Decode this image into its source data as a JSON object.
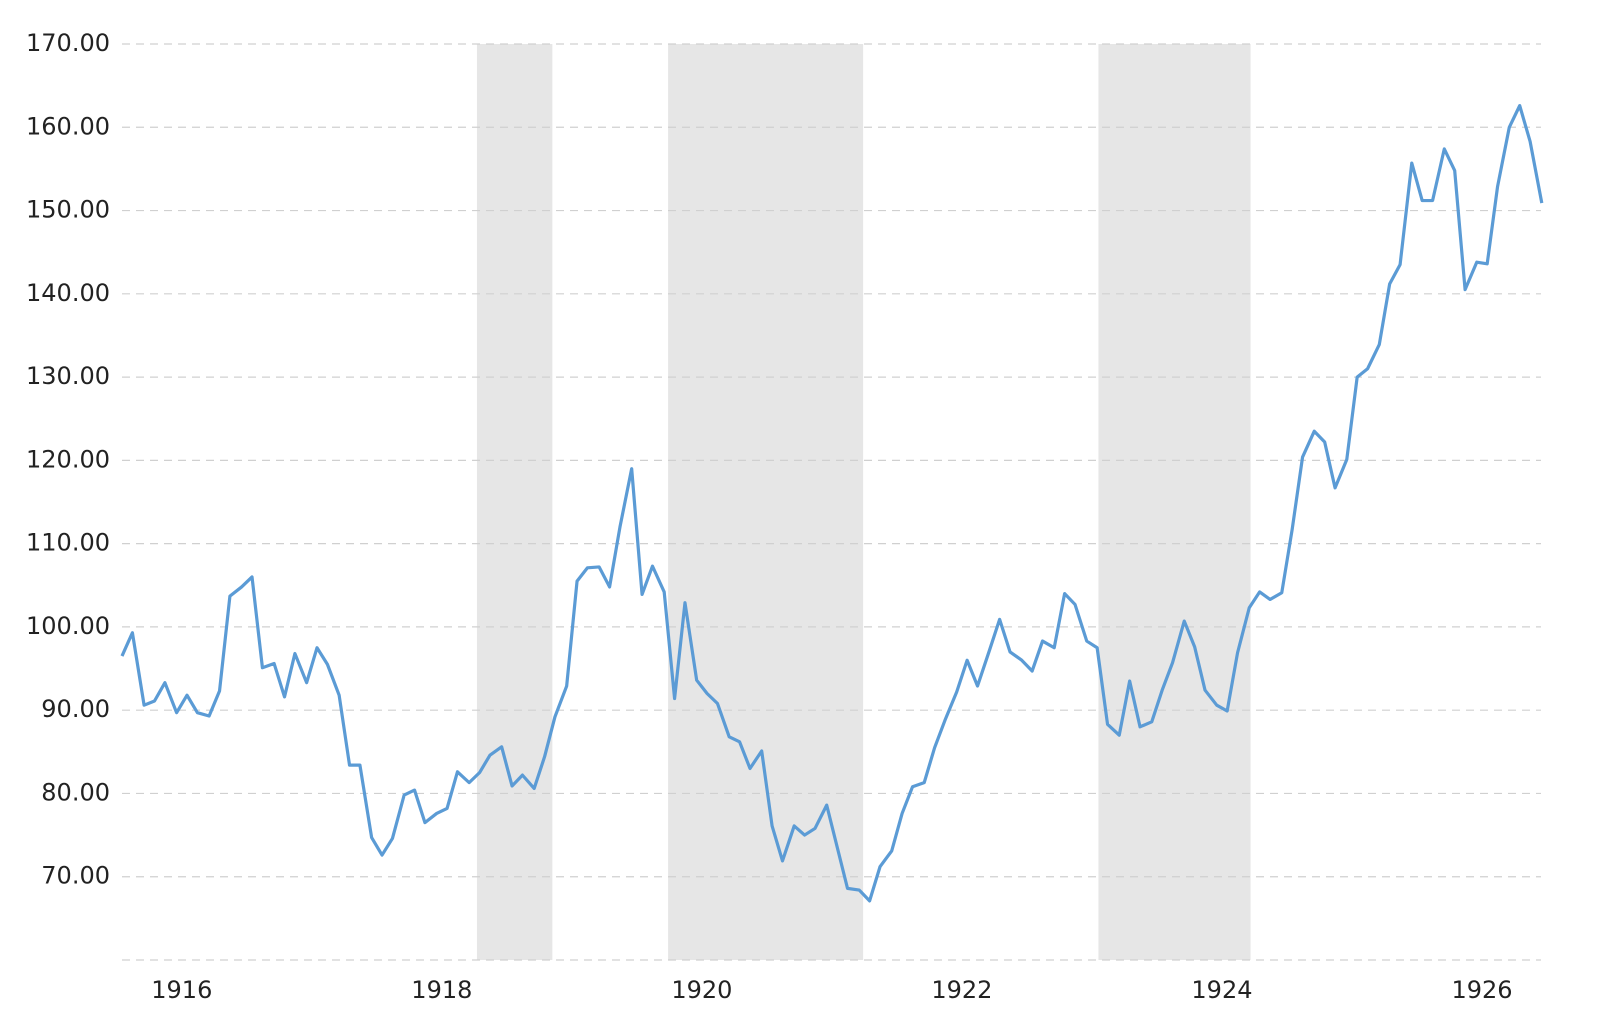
{
  "chart_data": {
    "type": "line",
    "x": [
      1915.54,
      1915.62,
      1915.71,
      1915.79,
      1915.87,
      1915.96,
      1916.04,
      1916.12,
      1916.21,
      1916.29,
      1916.37,
      1916.46,
      1916.54,
      1916.62,
      1916.71,
      1916.79,
      1916.87,
      1916.96,
      1917.04,
      1917.12,
      1917.21,
      1917.29,
      1917.37,
      1917.46,
      1917.54,
      1917.62,
      1917.71,
      1917.79,
      1917.87,
      1917.96,
      1918.04,
      1918.12,
      1918.21,
      1918.29,
      1918.37,
      1918.46,
      1918.54,
      1918.62,
      1918.71,
      1918.79,
      1918.87,
      1918.96,
      1919.04,
      1919.12,
      1919.21,
      1919.29,
      1919.37,
      1919.46,
      1919.54,
      1919.62,
      1919.71,
      1919.79,
      1919.87,
      1919.96,
      1920.04,
      1920.12,
      1920.21,
      1920.29,
      1920.37,
      1920.46,
      1920.54,
      1920.62,
      1920.71,
      1920.79,
      1920.87,
      1920.96,
      1921.04,
      1921.12,
      1921.21,
      1921.29,
      1921.37,
      1921.46,
      1921.54,
      1921.62,
      1921.71,
      1921.79,
      1921.87,
      1921.96,
      1922.04,
      1922.12,
      1922.21,
      1922.29,
      1922.37,
      1922.46,
      1922.54,
      1922.62,
      1922.71,
      1922.79,
      1922.87,
      1922.96,
      1923.04,
      1923.12,
      1923.21,
      1923.29,
      1923.37,
      1923.46,
      1923.54,
      1923.62,
      1923.71,
      1923.79,
      1923.87,
      1923.96,
      1924.04,
      1924.12,
      1924.21,
      1924.29,
      1924.37,
      1924.46,
      1924.54,
      1924.62,
      1924.71,
      1924.79,
      1924.87,
      1924.96,
      1925.04,
      1925.12,
      1925.21,
      1925.29,
      1925.37,
      1925.46,
      1925.54,
      1925.62,
      1925.71,
      1925.79,
      1925.87,
      1925.96,
      1926.04,
      1926.12,
      1926.21,
      1926.29,
      1926.37,
      1926.46
    ],
    "series": [
      {
        "color": "#5b9bd5",
        "values": [
          96.5,
          99.3,
          90.6,
          91.1,
          93.3,
          89.7,
          91.8,
          89.7,
          89.3,
          92.3,
          103.7,
          104.8,
          106.0,
          95.1,
          95.6,
          91.6,
          96.8,
          93.3,
          97.5,
          95.5,
          91.8,
          83.4,
          83.4,
          74.7,
          72.6,
          74.6,
          79.8,
          80.4,
          76.5,
          77.6,
          78.2,
          82.6,
          81.3,
          82.5,
          84.6,
          85.6,
          80.9,
          82.2,
          80.6,
          84.4,
          89.2,
          92.9,
          105.5,
          107.1,
          107.2,
          104.8,
          112.0,
          119.0,
          103.9,
          107.3,
          104.2,
          91.4,
          102.9,
          93.6,
          92.0,
          90.8,
          86.8,
          86.2,
          83.0,
          85.1,
          76.1,
          71.9,
          76.1,
          75.0,
          75.8,
          78.6,
          73.6,
          68.6,
          68.4,
          67.1,
          71.2,
          73.1,
          77.6,
          80.8,
          81.3,
          85.5,
          88.8,
          92.2,
          96.0,
          92.9,
          97.1,
          100.9,
          97.0,
          96.0,
          94.7,
          98.3,
          97.5,
          104.0,
          102.7,
          98.3,
          97.5,
          88.3,
          87.0,
          93.5,
          88.0,
          88.6,
          92.4,
          95.7,
          100.7,
          97.6,
          92.4,
          90.6,
          89.9,
          96.9,
          102.3,
          104.2,
          103.3,
          104.1,
          111.7,
          120.4,
          123.5,
          122.2,
          116.7,
          120.1,
          130.0,
          131.0,
          133.9,
          141.2,
          143.5,
          155.7,
          151.2,
          151.2,
          157.4,
          154.8,
          140.5,
          143.8,
          143.6,
          152.9,
          160.0,
          162.6,
          158.3,
          150.9
        ]
      }
    ],
    "shaded_ranges": [
      [
        1918.27,
        1918.85
      ],
      [
        1919.74,
        1921.24
      ],
      [
        1923.05,
        1924.22
      ]
    ],
    "shade_color": "#e6e6e6",
    "xlim": [
      1915.54,
      1926.5
    ],
    "xticks": [
      1916,
      1918,
      1920,
      1922,
      1924,
      1926
    ],
    "ylim": [
      60,
      170
    ],
    "yticks": [
      {
        "value": 70,
        "label": "70.00"
      },
      {
        "value": 80,
        "label": "80.00"
      },
      {
        "value": 90,
        "label": "90.00"
      },
      {
        "value": 100,
        "label": "100.00"
      },
      {
        "value": 110,
        "label": "110.00"
      },
      {
        "value": 120,
        "label": "120.00"
      },
      {
        "value": 130,
        "label": "130.00"
      },
      {
        "value": 140,
        "label": "140.00"
      },
      {
        "value": 150,
        "label": "150.00"
      },
      {
        "value": 160,
        "label": "160.00"
      },
      {
        "value": 170,
        "label": "170.00"
      }
    ],
    "grid": true
  }
}
